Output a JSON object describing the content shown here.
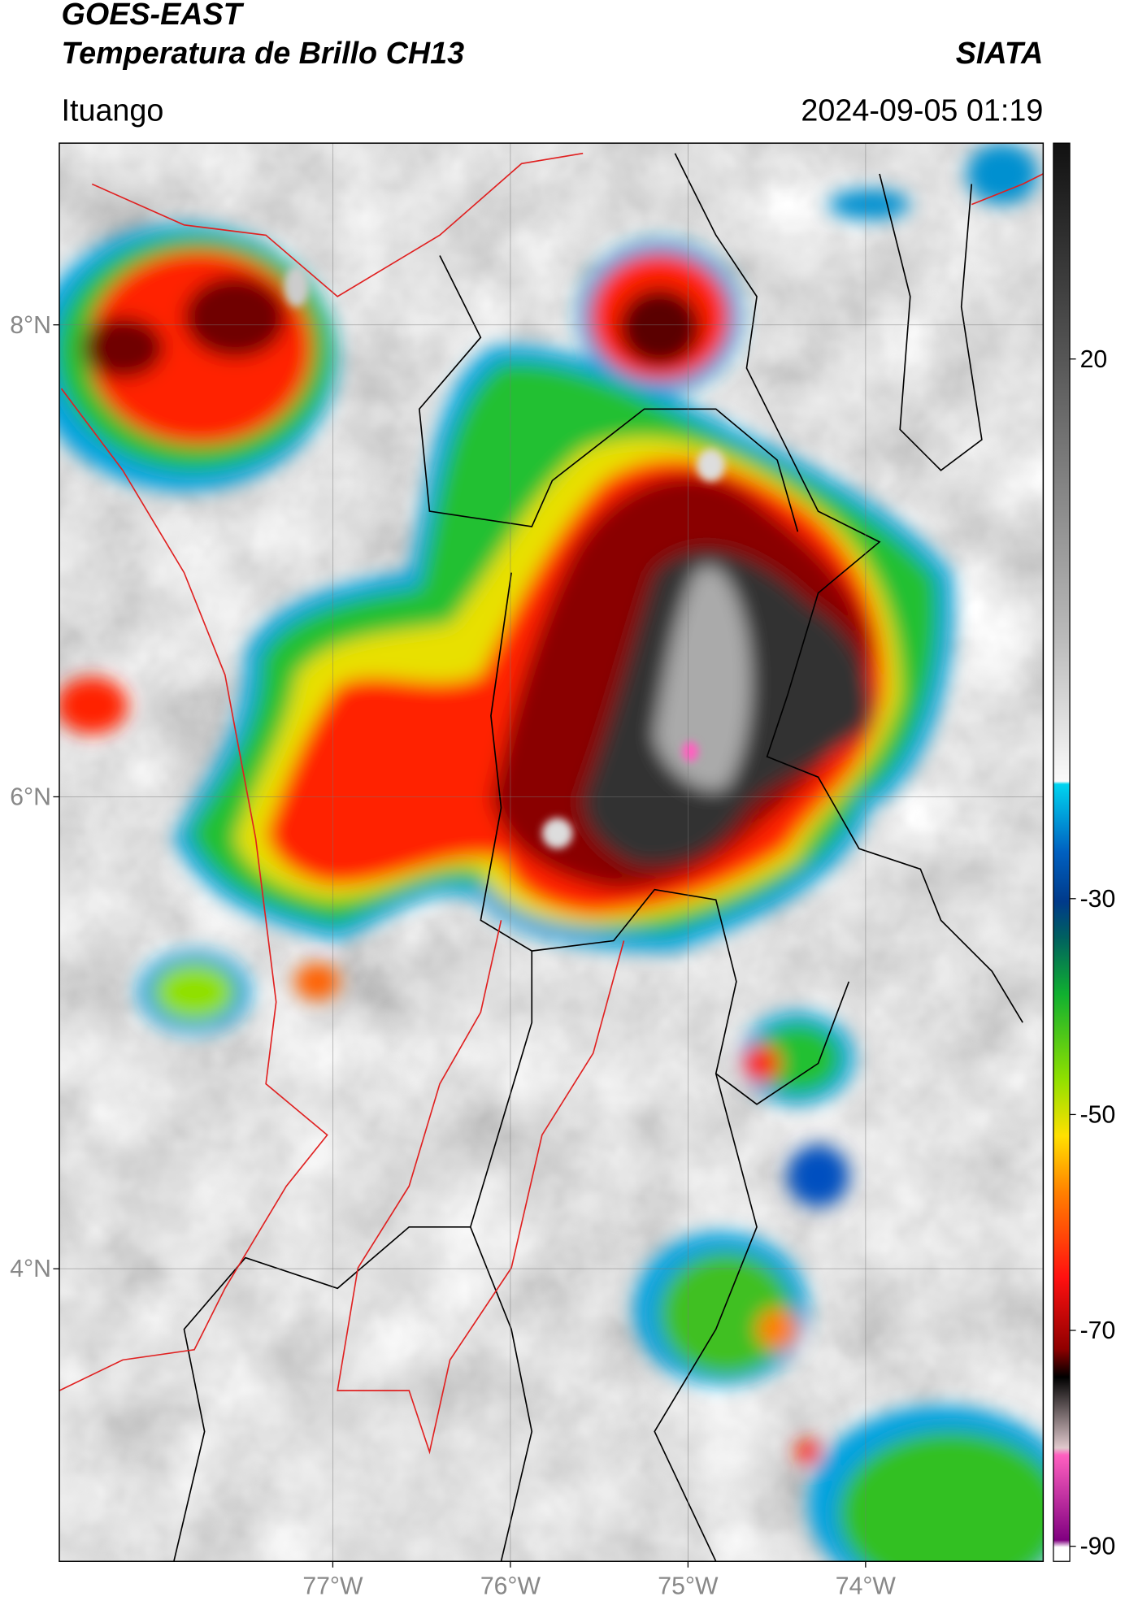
{
  "header": {
    "satellite": "GOES-EAST",
    "product": "Temperatura de Brillo CH13",
    "agency": "SIATA",
    "location": "Ituango",
    "datetime": "2024-09-05 01:19"
  },
  "map": {
    "lat_range": [
      2.76,
      8.77
    ],
    "lon_range": [
      -78.54,
      -73.0
    ],
    "lat_ticks": [
      {
        "value": 8,
        "label": "8°N"
      },
      {
        "value": 6,
        "label": "6°N"
      },
      {
        "value": 4,
        "label": "4°N"
      }
    ],
    "lon_ticks": [
      {
        "value": -77,
        "label": "77°W"
      },
      {
        "value": -76,
        "label": "76°W"
      },
      {
        "value": -75,
        "label": "75°W"
      },
      {
        "value": -74,
        "label": "74°W"
      }
    ],
    "grid": true
  },
  "colorbar": {
    "range": [
      -91.4,
      40
    ],
    "ticks": [
      20,
      -30,
      -50,
      -70,
      -90
    ]
  }
}
